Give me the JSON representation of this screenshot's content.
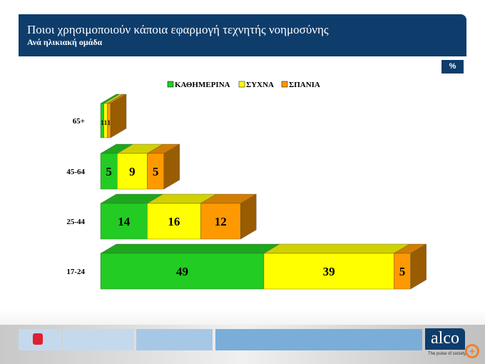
{
  "header": {
    "title": "Ποιοι χρησιμοποιούν κάποια εφαρμογή τεχνητής νοημοσύνης",
    "subtitle": "Ανά ηλικιακή ομάδα"
  },
  "badge": "%",
  "footer": {
    "brand": "alco",
    "tagline": "The pulse of society"
  },
  "chart_data": {
    "type": "bar",
    "orientation": "horizontal",
    "stacked": true,
    "3d": true,
    "categories": [
      "65+",
      "45-64",
      "25-44",
      "17-24"
    ],
    "series": [
      {
        "name": "ΚΑΘΗΜΕΡΙΝΑ",
        "color": "#22cc22",
        "values": [
          1,
          5,
          14,
          49
        ]
      },
      {
        "name": "ΣΥΧΝΑ",
        "color": "#ffff00",
        "values": [
          1,
          9,
          16,
          39
        ]
      },
      {
        "name": "ΣΠΑΝΙΑ",
        "color": "#ff9900",
        "values": [
          1,
          5,
          12,
          5
        ]
      }
    ],
    "legend": "top"
  }
}
